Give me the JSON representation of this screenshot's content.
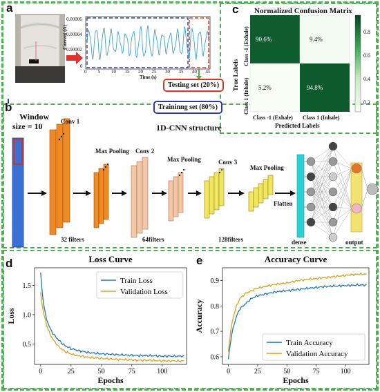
{
  "panels": {
    "a": "a",
    "b": "b",
    "c": "c",
    "d": "d",
    "e": "e"
  },
  "panel_a": {
    "ylabel": "Current (A)",
    "xlabel": "Time (s)",
    "yticks": [
      "0.00006",
      "0.00004",
      "0.00002",
      "0"
    ],
    "xticks": [
      "0",
      "5",
      "10",
      "15",
      "20",
      "25",
      "30",
      "35",
      "40",
      "45"
    ],
    "testing_label": "Testing set (20%)",
    "training_label": "Traininng set (80%)"
  },
  "panel_b": {
    "window_label_1": "Window",
    "window_label_2": "size = 10",
    "title": "1D-CNN structure",
    "layers": [
      "Conv 1",
      "Max Pooling",
      "Conv 2",
      "Max Pooling",
      "Conv 3",
      "Max Pooling"
    ],
    "filters": [
      "32 filters",
      "64filters",
      "128filters"
    ],
    "flatten": "Flatten",
    "dense": "dense",
    "output": "output",
    "colors": {
      "conv1": "#f08a24",
      "conv2": "#f4c7a7",
      "conv3": "#f3e65f",
      "input": "#3a6fd8",
      "dense": "#2ed0d6",
      "output": "#f3e270"
    }
  },
  "confusion": {
    "title": "Normalized Confusion Matrix",
    "xlabel": "Predicted Labels",
    "ylabel": "True Labels",
    "row_labels": [
      "Class -1 (Exhale)",
      "Class 1 (Inhale)"
    ],
    "col_labels": [
      "Class -1 (Exhale)",
      "Class 1 (Inhale)"
    ],
    "cells": [
      [
        "90.6%",
        "9.4%"
      ],
      [
        "5.2%",
        "94.8%"
      ]
    ],
    "values": [
      [
        0.906,
        0.094
      ],
      [
        0.052,
        0.948
      ]
    ],
    "colorbar_ticks": [
      "0.8",
      "0.6",
      "0.4",
      "0.2"
    ]
  },
  "chart_data": [
    {
      "type": "line",
      "title": "Loss Curve",
      "xlabel": "Epochs",
      "ylabel": "Loss",
      "xlim": [
        -5,
        120
      ],
      "ylim": [
        0.15,
        1.8
      ],
      "xticks": [
        "0",
        "25",
        "50",
        "75",
        "100"
      ],
      "yticks": [
        "0.5",
        "1.0",
        "1.5"
      ],
      "legend": "top-right",
      "series": [
        {
          "name": "Train Loss",
          "color": "#1f77b4",
          "x": [
            0,
            1,
            2,
            3,
            4,
            5,
            7,
            10,
            15,
            20,
            25,
            30,
            40,
            50,
            60,
            70,
            80,
            90,
            100,
            110,
            118
          ],
          "y": [
            1.72,
            1.45,
            1.25,
            1.12,
            1.0,
            0.92,
            0.8,
            0.68,
            0.56,
            0.47,
            0.42,
            0.39,
            0.35,
            0.33,
            0.32,
            0.31,
            0.3,
            0.3,
            0.29,
            0.29,
            0.29
          ]
        },
        {
          "name": "Validation Loss",
          "color": "#d9a21b",
          "x": [
            0,
            1,
            2,
            3,
            4,
            5,
            7,
            10,
            15,
            20,
            25,
            30,
            40,
            50,
            60,
            70,
            80,
            90,
            100,
            110,
            118
          ],
          "y": [
            1.38,
            1.2,
            1.08,
            0.98,
            0.9,
            0.82,
            0.7,
            0.58,
            0.45,
            0.37,
            0.33,
            0.3,
            0.27,
            0.25,
            0.24,
            0.23,
            0.22,
            0.22,
            0.21,
            0.21,
            0.21
          ]
        }
      ]
    },
    {
      "type": "line",
      "title": "Accuracy Curve",
      "xlabel": "Epochs",
      "ylabel": "Accuracy",
      "xlim": [
        -5,
        120
      ],
      "ylim": [
        0.57,
        0.95
      ],
      "xticks": [
        "0",
        "25",
        "50",
        "75",
        "100"
      ],
      "yticks": [
        "0.6",
        "0.7",
        "0.8",
        "0.9"
      ],
      "legend": "bottom-right",
      "series": [
        {
          "name": "Train Accuracy",
          "color": "#1f77b4",
          "x": [
            0,
            1,
            2,
            3,
            5,
            7,
            10,
            15,
            20,
            25,
            30,
            40,
            50,
            60,
            70,
            80,
            90,
            100,
            110,
            118
          ],
          "y": [
            0.59,
            0.63,
            0.66,
            0.69,
            0.73,
            0.76,
            0.79,
            0.81,
            0.83,
            0.84,
            0.845,
            0.855,
            0.86,
            0.865,
            0.87,
            0.875,
            0.878,
            0.88,
            0.882,
            0.882
          ]
        },
        {
          "name": "Validation Accuracy",
          "color": "#d9a21b",
          "x": [
            0,
            1,
            2,
            3,
            5,
            7,
            10,
            15,
            20,
            25,
            30,
            40,
            50,
            60,
            70,
            80,
            90,
            100,
            110,
            118
          ],
          "y": [
            0.62,
            0.66,
            0.7,
            0.73,
            0.77,
            0.8,
            0.83,
            0.85,
            0.86,
            0.87,
            0.875,
            0.885,
            0.89,
            0.9,
            0.905,
            0.91,
            0.915,
            0.92,
            0.925,
            0.925
          ]
        }
      ]
    }
  ]
}
